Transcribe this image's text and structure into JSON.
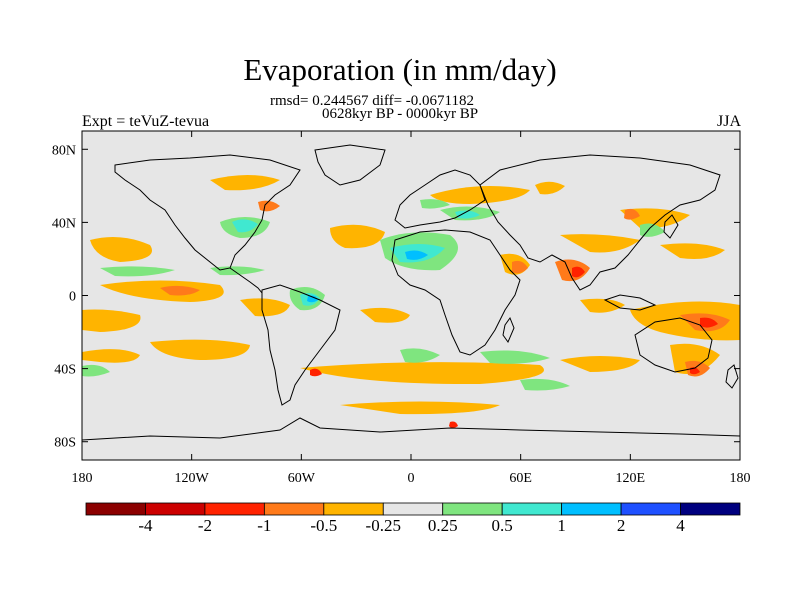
{
  "header": {
    "title": "Evaporation (in mm/day)",
    "stats_line1": "rmsd= 0.244567 diff= -0.0671182",
    "stats_line2": "0628kyr BP - 0000kyr BP",
    "experiment": "Expt = teVuZ-tevua",
    "season": "JJA"
  },
  "axes": {
    "lat_labels": [
      "80N",
      "40N",
      "0",
      "40S",
      "80S"
    ],
    "lat_values": [
      80,
      40,
      0,
      -40,
      -80
    ],
    "lon_labels": [
      "180",
      "120W",
      "60W",
      "0",
      "60E",
      "120E",
      "180"
    ],
    "lon_values": [
      -180,
      -120,
      -60,
      0,
      60,
      120,
      180
    ],
    "lat_range": [
      -90,
      90
    ],
    "lon_range": [
      -180,
      180
    ]
  },
  "colorbar": {
    "labels": [
      "-4",
      "-2",
      "-1",
      "-0.5",
      "-0.25",
      "0.25",
      "0.5",
      "1",
      "2",
      "4"
    ],
    "colors": [
      "#8B0000",
      "#CC0000",
      "#FF2200",
      "#FF7A1A",
      "#FFB400",
      "#E6E6E6",
      "#7FE57F",
      "#40E8D0",
      "#00BFFF",
      "#1E50FF",
      "#00007F"
    ]
  },
  "colors": {
    "background": "#E6E6E6",
    "coast": "#000000",
    "neg_small": "#FFB400",
    "neg_med": "#FF7A1A",
    "neg_large": "#FF2200",
    "pos_small": "#7FE57F",
    "pos_med": "#40E8D0",
    "pos_large": "#00BFFF"
  }
}
